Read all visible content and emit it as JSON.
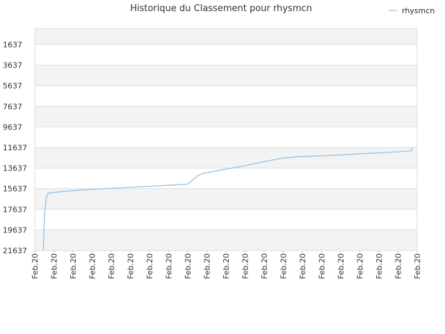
{
  "chart_data": {
    "type": "line",
    "title": "Historique du Classement pour rhysmcn",
    "xlabel": "",
    "ylabel": "",
    "x_tick_labels": [
      "Feb.20",
      "Feb.20",
      "Feb.20",
      "Feb.20",
      "Feb.20",
      "Feb.20",
      "Feb.20",
      "Feb.20",
      "Feb.20",
      "Feb.20",
      "Feb.20",
      "Feb.20",
      "Feb.20",
      "Feb.20",
      "Feb.20",
      "Feb.20",
      "Feb.20",
      "Feb.20",
      "Feb.20",
      "Feb.20",
      "Feb.20"
    ],
    "y_ticks": [
      1637,
      3637,
      5637,
      7637,
      9637,
      11637,
      13637,
      15637,
      17637,
      19637,
      21637
    ],
    "ylim": [
      21637,
      1637
    ],
    "y_inverted": true,
    "grid": true,
    "legend_position": "top-right",
    "series": [
      {
        "name": "rhysmcn",
        "color": "#8ec2ea",
        "x": [
          0.45,
          0.48,
          0.52,
          0.6,
          0.7,
          1.25,
          2.5,
          4.5,
          6.5,
          8.0,
          8.5,
          8.8,
          9.5,
          11.0,
          12.0,
          13.0,
          14.0,
          15.0,
          16.0,
          17.0,
          18.0,
          19.0,
          19.7,
          19.75
        ],
        "values": [
          21637,
          19500,
          18000,
          16500,
          16050,
          15950,
          15750,
          15550,
          15350,
          15200,
          14400,
          14150,
          13900,
          13400,
          13000,
          12650,
          12500,
          12450,
          12350,
          12250,
          12150,
          12050,
          11950,
          11600
        ]
      }
    ]
  }
}
